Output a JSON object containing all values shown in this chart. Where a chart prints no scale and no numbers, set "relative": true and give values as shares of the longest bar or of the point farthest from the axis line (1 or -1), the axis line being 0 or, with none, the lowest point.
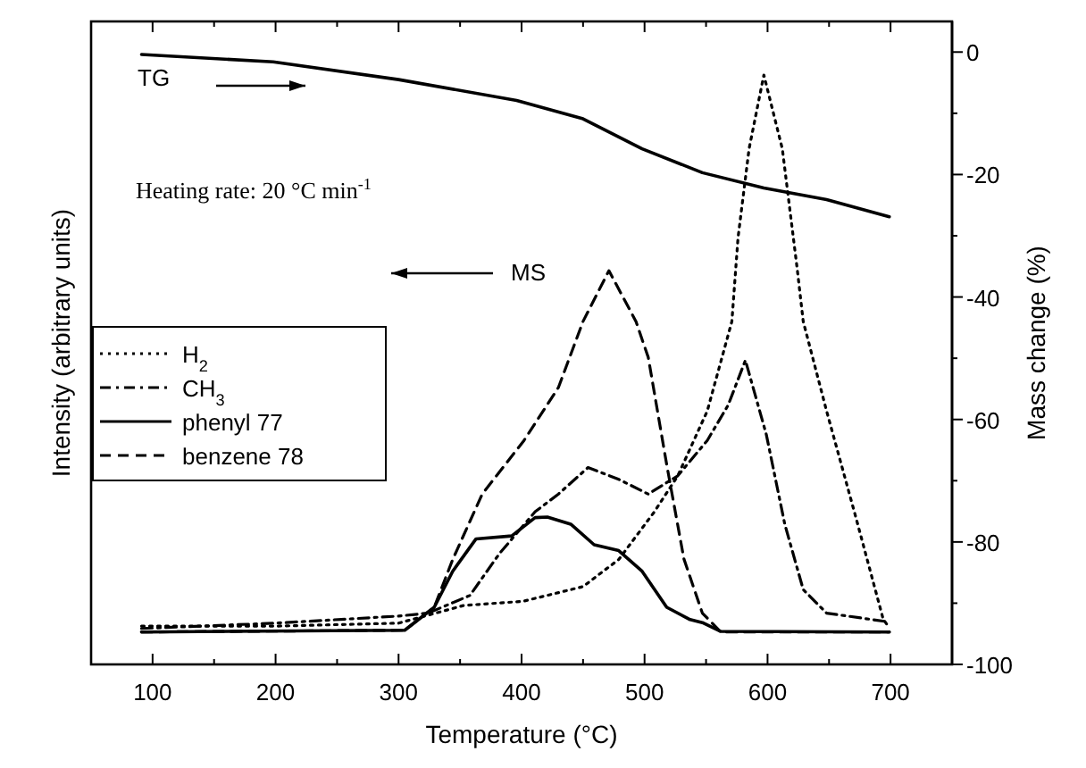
{
  "chart_data": [
    {
      "type": "line",
      "xlabel": "Temperature (°C)",
      "ylabel": "Intensity (arbitrary units)",
      "relative": true,
      "xlim": [
        50,
        750
      ],
      "xticks": [
        100,
        {
          "value": 150,
          "label": null
        },
        200,
        {
          "value": 250,
          "label": null
        },
        300,
        {
          "value": 350,
          "label": null
        },
        400,
        {
          "value": 450,
          "label": null
        },
        500,
        {
          "value": 550,
          "label": null
        },
        600,
        {
          "value": 650,
          "label": null
        },
        700
      ],
      "legend": "left",
      "marker": "none",
      "tick_labels": "x",
      "annotations": [
        "MS"
      ],
      "series": [
        {
          "name": "H$_{2}$",
          "color": "#000000",
          "line_style": "dotted",
          "x": [
            91,
            200,
            300,
            353,
            401,
            450,
            479,
            508,
            527,
            551,
            571,
            576,
            585,
            597,
            612,
            624,
            629,
            648,
            672,
            694,
            699
          ],
          "values": [
            0.065,
            0.065,
            0.07,
            0.1,
            0.107,
            0.132,
            0.178,
            0.259,
            0.32,
            0.43,
            0.582,
            0.724,
            0.875,
            1.0,
            0.875,
            0.673,
            0.582,
            0.43,
            0.248,
            0.077,
            0.062
          ]
        },
        {
          "name": "CH$_{3}$",
          "color": "#000000",
          "line_style": "dashdot",
          "x": [
            91,
            200,
            300,
            324,
            358,
            382,
            411,
            430,
            454,
            479,
            503,
            527,
            551,
            568,
            582,
            599,
            614,
            629,
            648,
            699
          ],
          "values": [
            0.061,
            0.07,
            0.082,
            0.087,
            0.117,
            0.188,
            0.259,
            0.289,
            0.334,
            0.314,
            0.289,
            0.32,
            0.38,
            0.44,
            0.516,
            0.39,
            0.238,
            0.127,
            0.087,
            0.072
          ]
        },
        {
          "name": "phenyl 77",
          "color": "#000000",
          "line_style": "solid",
          "x": [
            91,
            305,
            329,
            344,
            363,
            392,
            411,
            421,
            440,
            459,
            479,
            498,
            518,
            537,
            547,
            562,
            699
          ],
          "values": [
            0.055,
            0.058,
            0.097,
            0.158,
            0.213,
            0.218,
            0.249,
            0.25,
            0.238,
            0.203,
            0.193,
            0.158,
            0.097,
            0.076,
            0.071,
            0.056,
            0.055
          ]
        },
        {
          "name": "benzene 78",
          "color": "#000000",
          "line_style": "dashed",
          "x": [
            91,
            305,
            329,
            344,
            368,
            402,
            430,
            450,
            471,
            493,
            503,
            518,
            532,
            547,
            562,
            699
          ],
          "values": [
            0.055,
            0.058,
            0.097,
            0.178,
            0.289,
            0.38,
            0.47,
            0.582,
            0.668,
            0.582,
            0.521,
            0.339,
            0.179,
            0.087,
            0.055,
            0.055
          ]
        }
      ]
    },
    {
      "type": "line",
      "ylabel": "Mass change (%)",
      "tick_labels": "y",
      "marker": "none",
      "xlim": [
        50,
        750
      ],
      "ylim": [
        -100,
        5
      ],
      "yticks": [
        -100,
        {
          "value": -90,
          "label": null
        },
        -80,
        {
          "value": -70,
          "label": null
        },
        -60,
        {
          "value": -50,
          "label": null
        },
        -40,
        {
          "value": -30,
          "label": null
        },
        -20,
        {
          "value": -10,
          "label": null
        },
        0
      ],
      "annotations": [
        "TG",
        "Heating rate: 20 °C min$^{-1}$"
      ],
      "series": [
        {
          "color": "#000000",
          "line_style": "solid",
          "x": [
            91,
            198,
            300,
            396,
            450,
            498,
            547,
            597,
            648,
            699
          ],
          "values": [
            -0.4,
            -1.6,
            -4.5,
            -7.9,
            -10.9,
            -15.8,
            -19.7,
            -22.2,
            -24.1,
            -26.9
          ]
        }
      ]
    }
  ]
}
